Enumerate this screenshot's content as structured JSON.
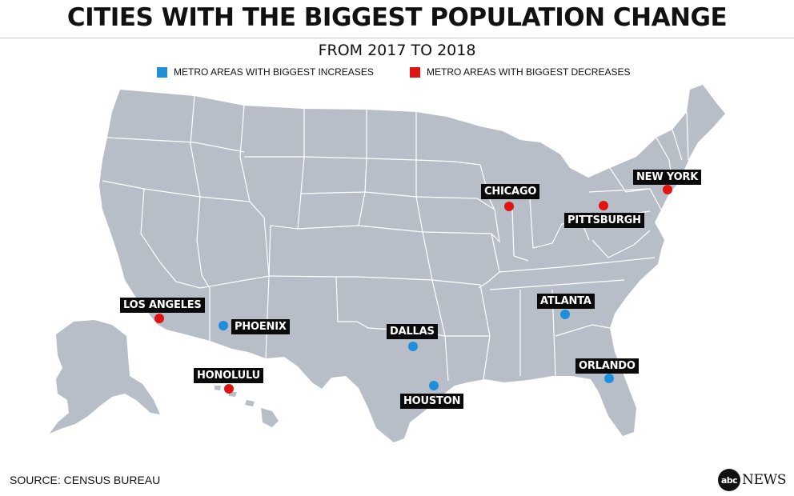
{
  "title": "CITIES WITH THE BIGGEST POPULATION CHANGE",
  "subtitle": "FROM 2017 TO 2018",
  "legend": {
    "increase_label": "METRO AREAS WITH BIGGEST INCREASES",
    "decrease_label": "METRO AREAS WITH BIGGEST DECREASES",
    "increase_color": "#1f8fdc",
    "decrease_color": "#e11414"
  },
  "map": {
    "land_color": "#b7bec8",
    "border_color": "#ffffff"
  },
  "cities": {
    "chicago": {
      "name": "CHICAGO",
      "type": "decrease"
    },
    "new_york": {
      "name": "NEW YORK",
      "type": "decrease"
    },
    "pittsburgh": {
      "name": "PITTSBURGH",
      "type": "decrease"
    },
    "los_angeles": {
      "name": "LOS ANGELES",
      "type": "decrease"
    },
    "honolulu": {
      "name": "HONOLULU",
      "type": "decrease"
    },
    "phoenix": {
      "name": "PHOENIX",
      "type": "increase"
    },
    "dallas": {
      "name": "DALLAS",
      "type": "increase"
    },
    "houston": {
      "name": "HOUSTON",
      "type": "increase"
    },
    "atlanta": {
      "name": "ATLANTA",
      "type": "increase"
    },
    "orlando": {
      "name": "ORLANDO",
      "type": "increase"
    }
  },
  "source": "SOURCE: CENSUS BUREAU",
  "brand": {
    "logo": "abc",
    "name": "NEWS"
  }
}
